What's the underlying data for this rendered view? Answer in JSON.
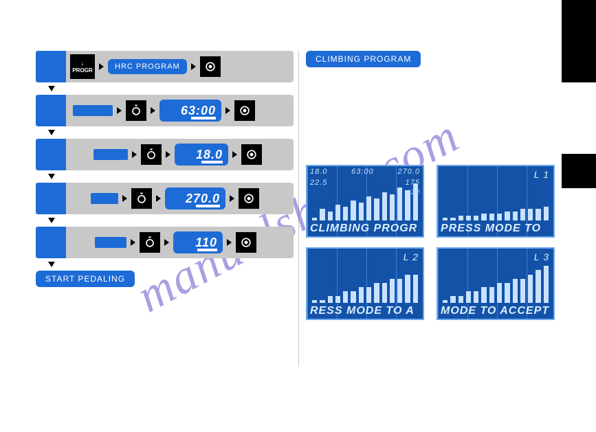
{
  "watermark": "manualshive.com",
  "colors": {
    "blue": "#1d6bd6",
    "screen_bg": "#1352a7",
    "screen_border": "#6aa8ef",
    "screen_fg": "#c8e2ff",
    "bar_gray": "#c8c8c9",
    "black": "#000000",
    "wm": "#5a3fc4"
  },
  "left": {
    "progr_label": "PROGR",
    "pill_hrc": "HRC PROGRAM",
    "lcd_time": "63:00",
    "lcd_val2": "18.0",
    "lcd_val3": "270.0",
    "lcd_val4": "110",
    "start_msg": "START PEDALING"
  },
  "right": {
    "climbing_pill": "CLIMBING PROGRAM",
    "screens": [
      {
        "top": [
          "18.0",
          "63:00",
          "270.0"
        ],
        "side": [
          "22.5",
          "175"
        ],
        "side2": "110",
        "bottom": "CLIMBING PROGR",
        "bars": [
          2,
          6,
          5,
          8,
          7,
          10,
          9,
          12,
          11,
          14,
          13,
          16,
          15,
          18
        ],
        "max": 20
      },
      {
        "lvl": "L 1",
        "bottom": "PRESS MODE TO",
        "bars": [
          2,
          2,
          3,
          3,
          3,
          4,
          4,
          4,
          5,
          5,
          6,
          6,
          6,
          7
        ],
        "max": 20
      },
      {
        "lvl": "L 2",
        "bottom": "RESS MODE TO A",
        "bars": [
          2,
          2,
          4,
          4,
          6,
          6,
          8,
          8,
          10,
          10,
          12,
          12,
          14,
          14
        ],
        "max": 20
      },
      {
        "lvl": "L 3",
        "bottom": "MODE TO ACCEPT",
        "bars": [
          2,
          4,
          4,
          6,
          6,
          8,
          8,
          10,
          10,
          12,
          12,
          14,
          16,
          18
        ],
        "max": 20
      }
    ]
  }
}
